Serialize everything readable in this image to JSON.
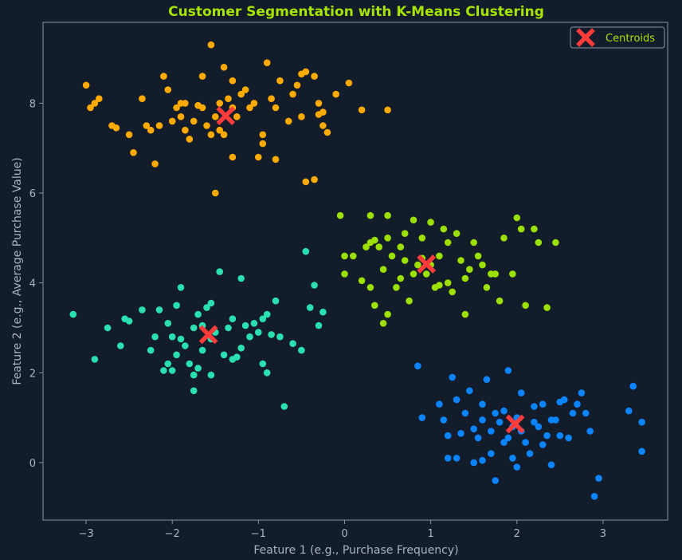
{
  "chart_data": {
    "type": "scatter",
    "title": "Customer Segmentation with K-Means Clustering",
    "xlabel": "Feature 1 (e.g., Purchase Frequency)",
    "ylabel": "Feature 2 (e.g., Average Purchase Value)",
    "xlim": [
      -3.5,
      3.75
    ],
    "ylim": [
      -1.28,
      9.8
    ],
    "xticks": [
      -3,
      -2,
      -1,
      0,
      1,
      2,
      3
    ],
    "xtick_labels": [
      "−3",
      "−2",
      "−1",
      "0",
      "1",
      "2",
      "3"
    ],
    "yticks": [
      0,
      2,
      4,
      6,
      8
    ],
    "ytick_labels": [
      "0",
      "2",
      "4",
      "6",
      "8"
    ],
    "grid": false,
    "legend_position": "top-right",
    "legend": [
      {
        "label": "Centroids",
        "marker": "X",
        "color": "#ff3b3b"
      }
    ],
    "colors": {
      "background": "#131c2b",
      "axes_frame": "#8a94a3",
      "text": "#aab3c0",
      "title": "#a6e400",
      "legend_text": "#a6e400",
      "centroid": "#ff3b3b"
    },
    "series": [
      {
        "color": "#ffaa00",
        "points": [
          [
            -3.0,
            8.4
          ],
          [
            -2.95,
            7.9
          ],
          [
            -2.9,
            8.0
          ],
          [
            -2.85,
            8.1
          ],
          [
            -2.7,
            7.5
          ],
          [
            -2.65,
            7.45
          ],
          [
            -2.5,
            7.3
          ],
          [
            -2.45,
            6.9
          ],
          [
            -2.35,
            8.1
          ],
          [
            -2.3,
            7.5
          ],
          [
            -2.25,
            7.4
          ],
          [
            -2.2,
            6.65
          ],
          [
            -2.15,
            7.5
          ],
          [
            -2.1,
            8.6
          ],
          [
            -2.05,
            8.3
          ],
          [
            -2.0,
            7.6
          ],
          [
            -1.95,
            7.9
          ],
          [
            -1.9,
            7.7
          ],
          [
            -1.85,
            8.0
          ],
          [
            -1.85,
            7.4
          ],
          [
            -1.8,
            7.2
          ],
          [
            -1.75,
            7.6
          ],
          [
            -1.7,
            7.95
          ],
          [
            -1.65,
            7.9
          ],
          [
            -1.65,
            8.6
          ],
          [
            -1.6,
            7.5
          ],
          [
            -1.55,
            9.3
          ],
          [
            -1.55,
            7.3
          ],
          [
            -1.5,
            6.0
          ],
          [
            -1.5,
            7.7
          ],
          [
            -1.45,
            8.0
          ],
          [
            -1.45,
            7.4
          ],
          [
            -1.4,
            7.3
          ],
          [
            -1.4,
            8.8
          ],
          [
            -1.35,
            8.1
          ],
          [
            -1.3,
            8.5
          ],
          [
            -1.3,
            6.8
          ],
          [
            -1.25,
            7.7
          ],
          [
            -1.2,
            8.2
          ],
          [
            -1.15,
            8.3
          ],
          [
            -1.1,
            7.9
          ],
          [
            -1.05,
            8.0
          ],
          [
            -1.0,
            6.8
          ],
          [
            -0.95,
            7.1
          ],
          [
            -0.95,
            7.3
          ],
          [
            -0.9,
            8.9
          ],
          [
            -0.85,
            8.1
          ],
          [
            -0.8,
            7.9
          ],
          [
            -0.8,
            6.75
          ],
          [
            -0.75,
            8.5
          ],
          [
            -0.65,
            7.6
          ],
          [
            -0.6,
            8.2
          ],
          [
            -0.55,
            8.4
          ],
          [
            -0.5,
            8.65
          ],
          [
            -0.45,
            8.7
          ],
          [
            -0.45,
            6.25
          ],
          [
            -0.35,
            8.6
          ],
          [
            -0.35,
            6.3
          ],
          [
            -0.3,
            7.75
          ],
          [
            -0.3,
            8.0
          ],
          [
            -0.25,
            7.5
          ],
          [
            -0.25,
            7.8
          ],
          [
            -0.2,
            7.35
          ],
          [
            -0.1,
            8.2
          ],
          [
            0.05,
            8.45
          ],
          [
            0.2,
            7.85
          ],
          [
            0.5,
            7.85
          ],
          [
            -0.5,
            7.7
          ],
          [
            -1.3,
            7.9
          ],
          [
            -1.9,
            8.0
          ]
        ]
      },
      {
        "color": "#9be000",
        "points": [
          [
            -0.05,
            5.5
          ],
          [
            0.0,
            4.6
          ],
          [
            0.0,
            4.2
          ],
          [
            0.1,
            4.6
          ],
          [
            0.2,
            4.05
          ],
          [
            0.25,
            4.8
          ],
          [
            0.3,
            4.9
          ],
          [
            0.3,
            5.5
          ],
          [
            0.35,
            4.95
          ],
          [
            0.35,
            3.5
          ],
          [
            0.4,
            4.8
          ],
          [
            0.45,
            3.1
          ],
          [
            0.45,
            4.3
          ],
          [
            0.5,
            3.3
          ],
          [
            0.5,
            5.0
          ],
          [
            0.5,
            5.5
          ],
          [
            0.55,
            4.6
          ],
          [
            0.6,
            3.9
          ],
          [
            0.65,
            4.1
          ],
          [
            0.65,
            4.8
          ],
          [
            0.7,
            4.5
          ],
          [
            0.75,
            3.6
          ],
          [
            0.8,
            4.2
          ],
          [
            0.8,
            5.4
          ],
          [
            0.85,
            4.4
          ],
          [
            0.9,
            5.0
          ],
          [
            0.95,
            4.2
          ],
          [
            1.0,
            4.4
          ],
          [
            1.0,
            5.35
          ],
          [
            1.05,
            3.9
          ],
          [
            1.1,
            4.6
          ],
          [
            1.15,
            5.2
          ],
          [
            1.2,
            4.9
          ],
          [
            1.25,
            3.8
          ],
          [
            1.3,
            5.1
          ],
          [
            1.35,
            4.5
          ],
          [
            1.4,
            3.3
          ],
          [
            1.45,
            4.3
          ],
          [
            1.5,
            4.9
          ],
          [
            1.55,
            4.6
          ],
          [
            1.6,
            4.4
          ],
          [
            1.65,
            3.9
          ],
          [
            1.7,
            4.2
          ],
          [
            1.75,
            4.2
          ],
          [
            1.8,
            3.6
          ],
          [
            1.85,
            5.0
          ],
          [
            1.95,
            4.2
          ],
          [
            2.0,
            5.45
          ],
          [
            2.05,
            5.2
          ],
          [
            2.1,
            3.5
          ],
          [
            2.2,
            5.2
          ],
          [
            2.25,
            4.9
          ],
          [
            2.35,
            3.45
          ],
          [
            2.45,
            4.9
          ],
          [
            0.3,
            3.9
          ],
          [
            1.2,
            4.0
          ],
          [
            0.7,
            5.1
          ],
          [
            1.1,
            3.95
          ],
          [
            1.4,
            4.1
          ],
          [
            0.9,
            4.55
          ]
        ]
      },
      {
        "color": "#2ae0b0",
        "points": [
          [
            -3.15,
            3.3
          ],
          [
            -2.9,
            2.3
          ],
          [
            -2.75,
            3.0
          ],
          [
            -2.6,
            2.6
          ],
          [
            -2.55,
            3.2
          ],
          [
            -2.5,
            3.15
          ],
          [
            -2.35,
            3.4
          ],
          [
            -2.25,
            2.5
          ],
          [
            -2.2,
            2.8
          ],
          [
            -2.15,
            3.4
          ],
          [
            -2.1,
            2.05
          ],
          [
            -2.05,
            3.1
          ],
          [
            -2.0,
            2.8
          ],
          [
            -2.0,
            2.05
          ],
          [
            -1.95,
            2.4
          ],
          [
            -1.95,
            3.5
          ],
          [
            -1.9,
            3.9
          ],
          [
            -1.85,
            2.6
          ],
          [
            -1.8,
            2.2
          ],
          [
            -1.75,
            3.0
          ],
          [
            -1.75,
            1.6
          ],
          [
            -1.7,
            2.1
          ],
          [
            -1.7,
            3.3
          ],
          [
            -1.65,
            2.5
          ],
          [
            -1.6,
            3.45
          ],
          [
            -1.55,
            3.55
          ],
          [
            -1.55,
            2.75
          ],
          [
            -1.5,
            2.9
          ],
          [
            -1.45,
            4.25
          ],
          [
            -1.4,
            2.4
          ],
          [
            -1.35,
            3.0
          ],
          [
            -1.3,
            3.2
          ],
          [
            -1.3,
            2.3
          ],
          [
            -1.25,
            2.35
          ],
          [
            -1.2,
            4.1
          ],
          [
            -1.15,
            3.05
          ],
          [
            -1.1,
            2.8
          ],
          [
            -1.05,
            3.1
          ],
          [
            -1.0,
            2.9
          ],
          [
            -0.95,
            3.2
          ],
          [
            -0.95,
            2.2
          ],
          [
            -0.9,
            2.0
          ],
          [
            -0.9,
            3.3
          ],
          [
            -0.85,
            2.85
          ],
          [
            -0.8,
            3.6
          ],
          [
            -0.75,
            2.8
          ],
          [
            -0.7,
            1.25
          ],
          [
            -0.6,
            2.65
          ],
          [
            -0.5,
            2.5
          ],
          [
            -0.4,
            3.45
          ],
          [
            -0.35,
            3.95
          ],
          [
            -0.3,
            3.05
          ],
          [
            -0.25,
            3.35
          ],
          [
            -0.45,
            4.7
          ],
          [
            -1.55,
            1.95
          ],
          [
            -1.65,
            3.05
          ],
          [
            -1.2,
            2.55
          ],
          [
            -1.9,
            2.75
          ],
          [
            -2.05,
            2.2
          ],
          [
            -1.75,
            1.95
          ]
        ]
      },
      {
        "color": "#0a84ff",
        "points": [
          [
            0.85,
            2.15
          ],
          [
            0.9,
            1.0
          ],
          [
            1.1,
            1.3
          ],
          [
            1.15,
            0.95
          ],
          [
            1.2,
            0.6
          ],
          [
            1.25,
            1.9
          ],
          [
            1.3,
            1.4
          ],
          [
            1.3,
            0.1
          ],
          [
            1.35,
            0.65
          ],
          [
            1.4,
            1.1
          ],
          [
            1.45,
            1.6
          ],
          [
            1.5,
            0.75
          ],
          [
            1.5,
            0.0
          ],
          [
            1.55,
            0.55
          ],
          [
            1.6,
            1.3
          ],
          [
            1.6,
            0.05
          ],
          [
            1.65,
            1.85
          ],
          [
            1.7,
            0.7
          ],
          [
            1.75,
            -0.4
          ],
          [
            1.75,
            1.1
          ],
          [
            1.8,
            0.9
          ],
          [
            1.85,
            1.15
          ],
          [
            1.9,
            2.05
          ],
          [
            1.9,
            0.55
          ],
          [
            1.95,
            0.1
          ],
          [
            2.0,
            -0.1
          ],
          [
            2.05,
            1.55
          ],
          [
            2.05,
            0.7
          ],
          [
            2.1,
            0.45
          ],
          [
            2.15,
            0.2
          ],
          [
            2.2,
            1.25
          ],
          [
            2.25,
            0.8
          ],
          [
            2.3,
            1.3
          ],
          [
            2.35,
            0.6
          ],
          [
            2.4,
            -0.05
          ],
          [
            2.45,
            0.95
          ],
          [
            2.5,
            0.6
          ],
          [
            2.55,
            1.4
          ],
          [
            2.6,
            0.55
          ],
          [
            2.65,
            1.1
          ],
          [
            2.7,
            1.3
          ],
          [
            2.75,
            1.55
          ],
          [
            2.8,
            1.1
          ],
          [
            2.85,
            0.7
          ],
          [
            2.9,
            -0.75
          ],
          [
            2.95,
            -0.35
          ],
          [
            3.3,
            1.15
          ],
          [
            3.35,
            1.7
          ],
          [
            3.45,
            0.9
          ],
          [
            3.45,
            0.25
          ],
          [
            1.6,
            0.95
          ],
          [
            2.2,
            0.9
          ],
          [
            1.85,
            0.45
          ],
          [
            2.4,
            0.95
          ],
          [
            1.2,
            0.1
          ],
          [
            2.0,
            1.0
          ],
          [
            1.7,
            0.2
          ],
          [
            2.3,
            0.4
          ],
          [
            2.5,
            1.35
          ],
          [
            1.95,
            0.8
          ]
        ]
      }
    ],
    "centroids": [
      [
        -1.38,
        7.72
      ],
      [
        0.95,
        4.42
      ],
      [
        -1.58,
        2.85
      ],
      [
        1.98,
        0.86
      ]
    ]
  }
}
